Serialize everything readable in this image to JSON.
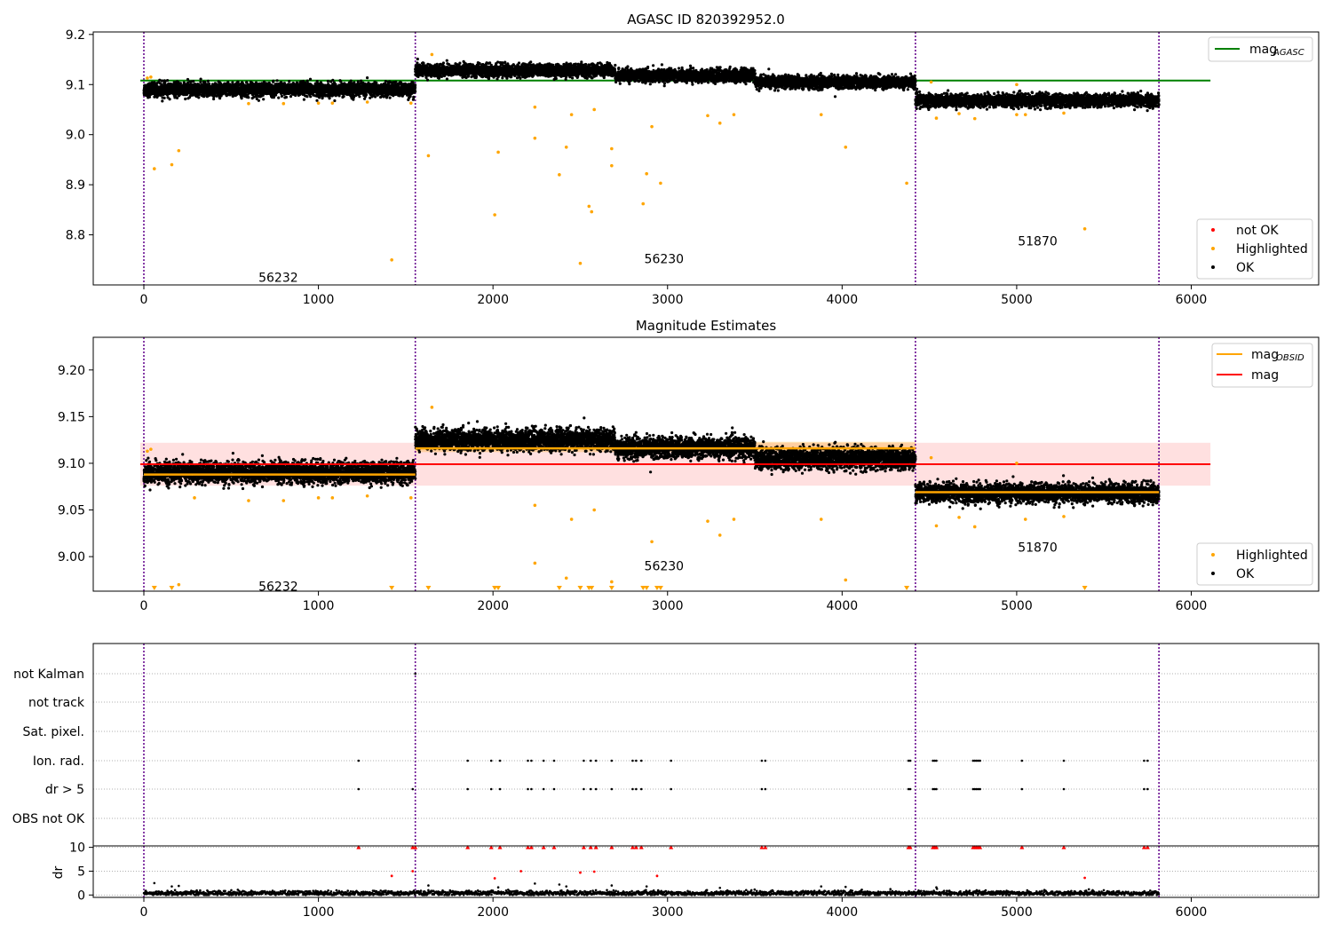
{
  "chart_data": [
    {
      "type": "scatter",
      "title": "AGASC ID 820392952.0",
      "xlabel": "",
      "ylabel": "",
      "xlim": [
        -290,
        6730
      ],
      "ylim": [
        8.7,
        9.205
      ],
      "xticks": [
        0,
        1000,
        2000,
        3000,
        4000,
        5000,
        6000
      ],
      "yticks": [
        8.8,
        8.9,
        9.0,
        9.1,
        9.2
      ],
      "ytick_labels": [
        "8.8",
        "8.9",
        "9.0",
        "9.1",
        "9.2"
      ],
      "obs_boundaries": [
        0,
        1555,
        4420,
        5815
      ],
      "obs_labels": [
        {
          "text": "56232",
          "x": 770,
          "y": 8.715
        },
        {
          "text": "56230",
          "x": 2980,
          "y": 8.752
        },
        {
          "text": "51870",
          "x": 5120,
          "y": 8.788
        }
      ],
      "agasc_mag": 9.108,
      "legend_top": {
        "placement": "top-right",
        "entries": [
          {
            "label": "mag",
            "sub": "AGASC",
            "color": "#008000"
          }
        ]
      },
      "legend_bottom": {
        "placement": "bottom-right",
        "entries": [
          {
            "label": "not OK",
            "color": "#ff0000"
          },
          {
            "label": "Highlighted",
            "color": "#ffa500"
          },
          {
            "label": "OK",
            "color": "#000000"
          }
        ]
      },
      "series": [
        {
          "name": "OK",
          "color": "#000000",
          "segments": [
            {
              "x0": 0,
              "x1": 1555,
              "mean": 9.09,
              "spread": 0.012
            },
            {
              "x0": 1555,
              "x1": 2700,
              "mean": 9.128,
              "spread": 0.011
            },
            {
              "x0": 2700,
              "x1": 3500,
              "mean": 9.118,
              "spread": 0.011
            },
            {
              "x0": 3500,
              "x1": 4420,
              "mean": 9.105,
              "spread": 0.011
            },
            {
              "x0": 4420,
              "x1": 5815,
              "mean": 9.068,
              "spread": 0.011
            }
          ]
        },
        {
          "name": "Highlighted",
          "color": "#ffa500",
          "points": [
            [
              60,
              8.932
            ],
            [
              160,
              8.94
            ],
            [
              200,
              8.968
            ],
            [
              20,
              9.113
            ],
            [
              40,
              9.115
            ],
            [
              600,
              9.062
            ],
            [
              800,
              9.062
            ],
            [
              1000,
              9.063
            ],
            [
              1080,
              9.063
            ],
            [
              1280,
              9.065
            ],
            [
              1530,
              9.063
            ],
            [
              1420,
              8.75
            ],
            [
              1630,
              8.958
            ],
            [
              2010,
              8.84
            ],
            [
              2030,
              8.965
            ],
            [
              2240,
              9.055
            ],
            [
              2240,
              8.993
            ],
            [
              2380,
              8.92
            ],
            [
              2420,
              8.975
            ],
            [
              2450,
              9.04
            ],
            [
              2500,
              8.743
            ],
            [
              2550,
              8.857
            ],
            [
              2565,
              8.846
            ],
            [
              2580,
              9.05
            ],
            [
              2680,
              8.972
            ],
            [
              2680,
              8.938
            ],
            [
              2860,
              8.862
            ],
            [
              2880,
              8.922
            ],
            [
              2910,
              9.016
            ],
            [
              2960,
              8.903
            ],
            [
              3230,
              9.038
            ],
            [
              3300,
              9.023
            ],
            [
              3380,
              9.04
            ],
            [
              3880,
              9.04
            ],
            [
              4020,
              8.975
            ],
            [
              4370,
              8.903
            ],
            [
              1650,
              9.16
            ],
            [
              4540,
              9.033
            ],
            [
              4670,
              9.042
            ],
            [
              4760,
              9.032
            ],
            [
              5000,
              9.04
            ],
            [
              5000,
              9.1
            ],
            [
              5390,
              8.812
            ],
            [
              4510,
              9.105
            ],
            [
              5050,
              9.04
            ],
            [
              5270,
              9.043
            ]
          ]
        }
      ]
    },
    {
      "type": "scatter",
      "title": "Magnitude Estimates",
      "xlabel": "",
      "ylabel": "",
      "xlim": [
        -290,
        6730
      ],
      "ylim": [
        8.963,
        9.235
      ],
      "xticks": [
        0,
        1000,
        2000,
        3000,
        4000,
        5000,
        6000
      ],
      "yticks": [
        9.0,
        9.05,
        9.1,
        9.15,
        9.2
      ],
      "ytick_labels": [
        "9.00",
        "9.05",
        "9.10",
        "9.15",
        "9.20"
      ],
      "obs_boundaries": [
        0,
        1555,
        4420,
        5815
      ],
      "obs_labels": [
        {
          "text": "56232",
          "x": 770,
          "y": 8.968
        },
        {
          "text": "56230",
          "x": 2980,
          "y": 8.99
        },
        {
          "text": "51870",
          "x": 5120,
          "y": 9.01
        }
      ],
      "mag": 9.099,
      "mag_band": [
        9.076,
        9.122
      ],
      "mag_obsid": [
        {
          "x0": 0,
          "x1": 1555,
          "mag": 9.088,
          "band": [
            9.084,
            9.092
          ]
        },
        {
          "x0": 1555,
          "x1": 4420,
          "mag": 9.116,
          "band": [
            9.112,
            9.123
          ]
        },
        {
          "x0": 4420,
          "x1": 5815,
          "mag": 9.069,
          "band": [
            9.066,
            9.072
          ]
        }
      ],
      "legend_top": {
        "placement": "top-right",
        "entries": [
          {
            "label": "mag",
            "sub": "OBSID",
            "color": "#ffa500"
          },
          {
            "label": "mag",
            "sub": "",
            "color": "#ff0000"
          }
        ]
      },
      "legend_bottom": {
        "placement": "bottom-right",
        "entries": [
          {
            "label": "Highlighted",
            "color": "#ffa500"
          },
          {
            "label": "OK",
            "color": "#000000"
          }
        ]
      },
      "series": [
        {
          "name": "OK",
          "color": "#000000",
          "segments": [
            {
              "x0": 0,
              "x1": 1555,
              "mean": 9.09,
              "spread": 0.01
            },
            {
              "x0": 1555,
              "x1": 2700,
              "mean": 9.125,
              "spread": 0.01
            },
            {
              "x0": 2700,
              "x1": 3500,
              "mean": 9.117,
              "spread": 0.01
            },
            {
              "x0": 3500,
              "x1": 4420,
              "mean": 9.105,
              "spread": 0.01
            },
            {
              "x0": 4420,
              "x1": 5815,
              "mean": 9.068,
              "spread": 0.009
            }
          ]
        },
        {
          "name": "Highlighted",
          "color": "#ffa500",
          "points": [
            [
              20,
              9.113
            ],
            [
              40,
              9.115
            ],
            [
              290,
              9.063
            ],
            [
              600,
              9.06
            ],
            [
              800,
              9.06
            ],
            [
              1000,
              9.063
            ],
            [
              1080,
              9.063
            ],
            [
              1280,
              9.065
            ],
            [
              1530,
              9.063
            ],
            [
              200,
              8.97
            ],
            [
              1650,
              9.16
            ],
            [
              2240,
              9.055
            ],
            [
              2240,
              8.993
            ],
            [
              2450,
              9.04
            ],
            [
              2420,
              8.977
            ],
            [
              2580,
              9.05
            ],
            [
              2680,
              8.973
            ],
            [
              2910,
              9.016
            ],
            [
              3230,
              9.038
            ],
            [
              3300,
              9.023
            ],
            [
              3380,
              9.04
            ],
            [
              3880,
              9.04
            ],
            [
              4020,
              8.975
            ],
            [
              4510,
              9.106
            ],
            [
              4540,
              9.033
            ],
            [
              4670,
              9.042
            ],
            [
              4760,
              9.032
            ],
            [
              5000,
              9.1
            ],
            [
              5050,
              9.04
            ],
            [
              5270,
              9.043
            ]
          ]
        },
        {
          "name": "Highlighted-clipped",
          "color": "#ffa500",
          "x": [
            60,
            160,
            1420,
            1630,
            2010,
            2030,
            2380,
            2500,
            2550,
            2565,
            2680,
            2860,
            2880,
            2960,
            2940,
            4370,
            5390
          ]
        }
      ]
    },
    {
      "type": "scatter",
      "title": "",
      "xlim": [
        -290,
        6730
      ],
      "flag_rows": [
        "not Kalman",
        "not track",
        "Sat. pixel.",
        "Ion. rad.",
        "dr > 5",
        "OBS not OK"
      ],
      "obs_boundaries": [
        0,
        1555,
        4420,
        5815
      ],
      "flag_points": {
        "not Kalman": [
          1555
        ],
        "Ion. rad.": [
          1230,
          1855,
          1990,
          2040,
          2200,
          2220,
          2290,
          2350,
          2520,
          2560,
          2590,
          2680,
          2800,
          2820,
          2850,
          3020,
          3540,
          3560,
          4380,
          4390,
          4520,
          4530,
          4540,
          4750,
          4760,
          4770,
          4780,
          4790,
          5030,
          5270,
          5730,
          5750
        ],
        "dr > 5": [
          1230,
          1540,
          1855,
          1990,
          2040,
          2200,
          2220,
          2290,
          2350,
          2520,
          2560,
          2590,
          2680,
          2800,
          2820,
          2850,
          3020,
          3540,
          3560,
          4380,
          4390,
          4520,
          4530,
          4540,
          4750,
          4760,
          4770,
          4780,
          4790,
          5030,
          5270,
          5730,
          5750
        ]
      }
    },
    {
      "type": "scatter",
      "title": "",
      "ylabel": "dr",
      "xlim": [
        -290,
        6730
      ],
      "ylim": [
        -0.5,
        10.3
      ],
      "xticks": [
        0,
        1000,
        2000,
        3000,
        4000,
        5000,
        6000
      ],
      "yticks": [
        0,
        5,
        10
      ],
      "ytick_labels": [
        "0",
        "5",
        "10"
      ],
      "obs_boundaries": [
        0,
        1555,
        4420,
        5815
      ],
      "clipped_red_x": [
        1230,
        1540,
        1555,
        1855,
        1990,
        2040,
        2200,
        2220,
        2290,
        2350,
        2520,
        2560,
        2590,
        2680,
        2800,
        2820,
        2850,
        3020,
        3540,
        3560,
        4380,
        4390,
        4520,
        4530,
        4540,
        4750,
        4760,
        4770,
        4780,
        4790,
        5030,
        5270,
        5730,
        5750
      ],
      "red_points": [
        [
          1420,
          4.0
        ],
        [
          1540,
          5.0
        ],
        [
          2010,
          3.5
        ],
        [
          2160,
          5.0
        ],
        [
          2500,
          4.7
        ],
        [
          2580,
          4.9
        ],
        [
          2940,
          4.0
        ],
        [
          5390,
          3.6
        ]
      ],
      "black_outliers": [
        [
          60,
          2.5
        ],
        [
          160,
          1.8
        ],
        [
          200,
          1.9
        ],
        [
          1630,
          2.0
        ],
        [
          2030,
          1.6
        ],
        [
          2240,
          2.4
        ],
        [
          2380,
          2.2
        ],
        [
          2420,
          1.8
        ],
        [
          2680,
          2.0
        ],
        [
          2880,
          1.8
        ],
        [
          3300,
          1.5
        ],
        [
          3880,
          1.8
        ],
        [
          4020,
          1.7
        ],
        [
          4540,
          1.6
        ]
      ],
      "baseline": {
        "mean": 0.4,
        "spread": 0.25
      }
    }
  ]
}
